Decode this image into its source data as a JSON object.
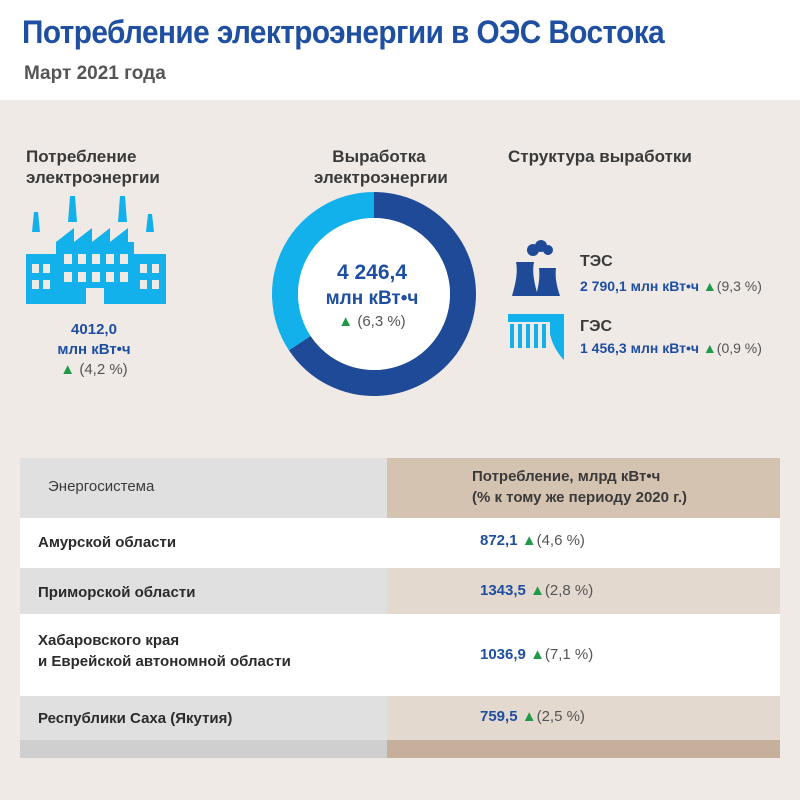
{
  "header": {
    "title": "Потребление электроэнергии в ОЭС Востока",
    "subtitle": "Март 2021 года"
  },
  "consumption": {
    "heading_line1": "Потребление",
    "heading_line2": "электроэнергии",
    "value": "4012,0",
    "unit": "млн кВт•ч",
    "arrow": "▲",
    "change": "(4,2 %)",
    "icon": "factory-icon"
  },
  "generation": {
    "heading_line1": "Выработка",
    "heading_line2": "электроэнергии",
    "value": "4 246,4",
    "unit": "млн кВт•ч",
    "arrow": "▲",
    "change": "(6,3 %)"
  },
  "structure": {
    "heading": "Структура выработки",
    "items": [
      {
        "name": "ТЭС",
        "value": "2 790,1",
        "unit": "млн  кВт•ч",
        "arrow": "▲",
        "change": "(9,3 %)",
        "icon": "thermal-plant-icon"
      },
      {
        "name": "ГЭС",
        "value": "1 456,3",
        "unit": "млн  кВт•ч",
        "arrow": "▲",
        "change": "(0,9 %)",
        "icon": "hydro-dam-icon"
      }
    ]
  },
  "chart_data": {
    "type": "pie",
    "categories": [
      "ТЭС",
      "ГЭС"
    ],
    "values": [
      2790.1,
      1456.3
    ],
    "total": 4246.4,
    "colors": [
      "#1f4a97",
      "#12b1ec"
    ],
    "donut": true
  },
  "table": {
    "col1_header": "Энергосистема",
    "col2_header_line1": "Потребление, млрд кВт•ч",
    "col2_header_line2": "(% к тому же периоду 2020 г.)",
    "rows": [
      {
        "name_line1": "Амурской области",
        "name_line2": "",
        "value": "872,1",
        "arrow": "▲",
        "change": "(4,6 %)"
      },
      {
        "name_line1": "Приморской области",
        "name_line2": "",
        "value": "1343,5",
        "arrow": "▲",
        "change": "(2,8 %)"
      },
      {
        "name_line1": "Хабаровского края",
        "name_line2": "и Еврейской автономной области",
        "value": "1036,9",
        "arrow": "▲",
        "change": "(7,1 %)"
      },
      {
        "name_line1": "Республики Саха (Якутия)",
        "name_line2": "",
        "value": "759,5",
        "arrow": "▲",
        "change": "(2,5 %)"
      }
    ]
  },
  "colors": {
    "title_blue": "#1f4fa0",
    "panel_bg": "#efeae6",
    "arrow_green": "#1e9a48",
    "icon_blue": "#12b1ec",
    "donut_dark": "#1f4a97",
    "donut_light": "#12b1ec"
  }
}
